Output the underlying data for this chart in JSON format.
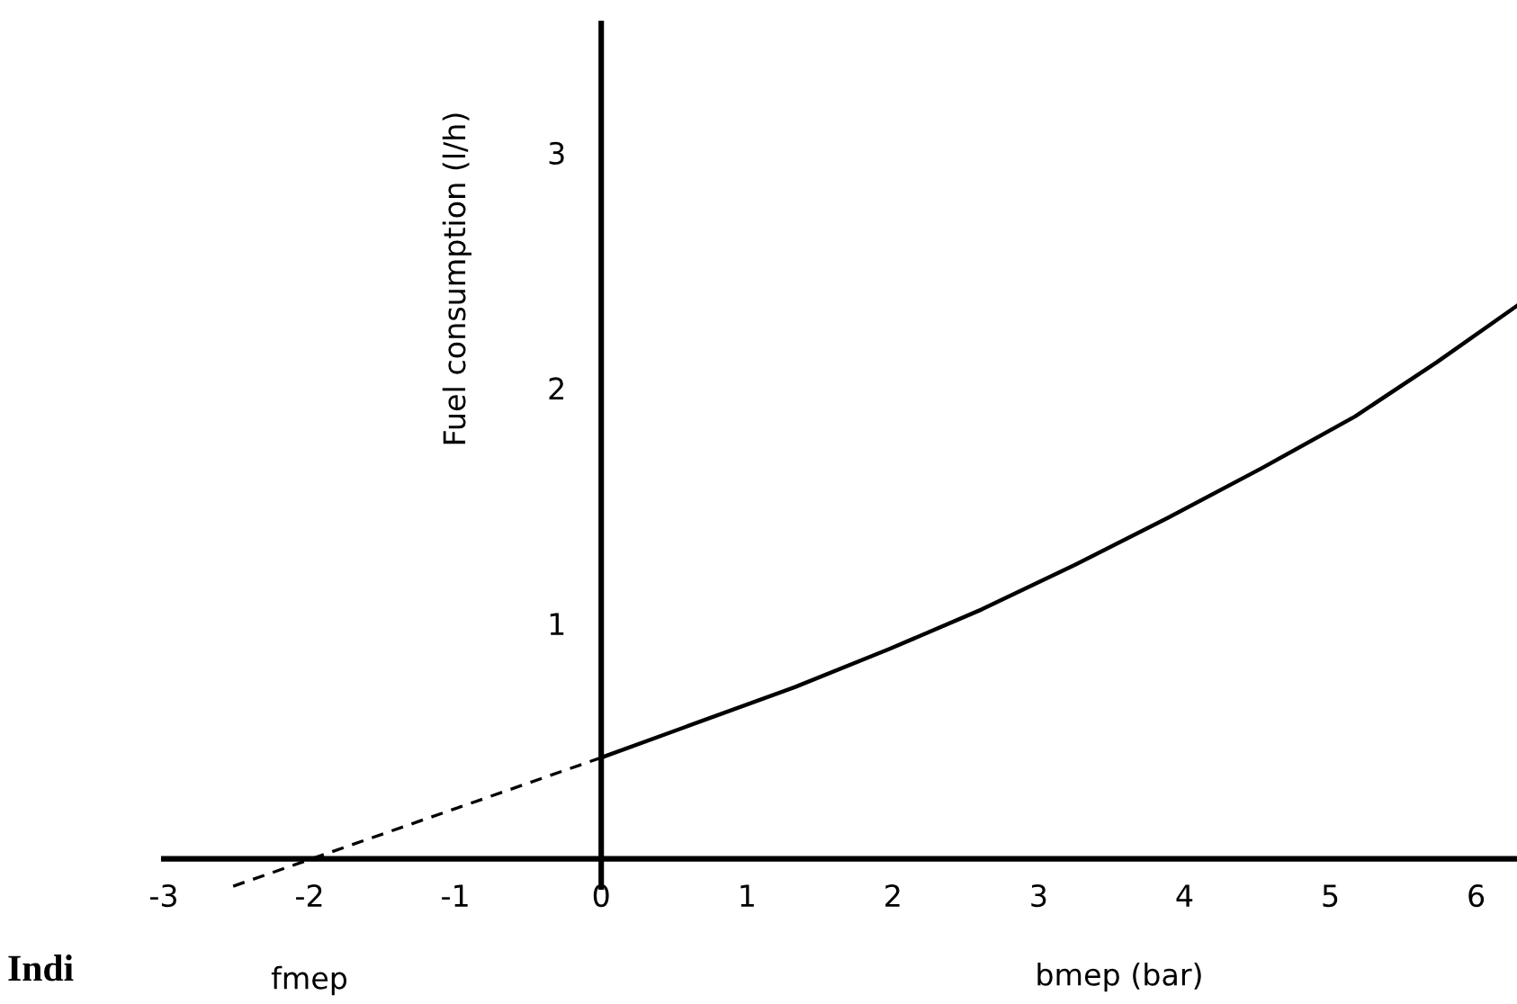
{
  "chart_data": {
    "type": "line",
    "xlabel": "bmep (bar)",
    "ylabel": "Fuel consumption (l/h)",
    "annotations": [
      "fmep",
      "Indi"
    ],
    "series": [
      {
        "color": "#000000",
        "line_style": "solid",
        "x": [
          0,
          1.33,
          1.97,
          2.61,
          3.25,
          3.89,
          4.53,
          5.17,
          5.73,
          6.28
        ],
        "values": [
          0.43,
          0.73,
          0.89,
          1.06,
          1.25,
          1.45,
          1.66,
          1.88,
          2.11,
          2.35
        ]
      },
      {
        "color": "#000000",
        "line_style": "dashed",
        "x": [
          0,
          -2.54
        ],
        "values": [
          0.43,
          -0.12
        ]
      }
    ],
    "xlim": [
      -3,
      6.28
    ],
    "ylim": [
      -0.12,
      3.55
    ],
    "xticks": [
      -3,
      -2,
      -1,
      0,
      1,
      2,
      3,
      4,
      5,
      6
    ],
    "yticks": [
      1,
      2,
      3
    ],
    "grid": false,
    "legend": false,
    "marker": "none"
  }
}
